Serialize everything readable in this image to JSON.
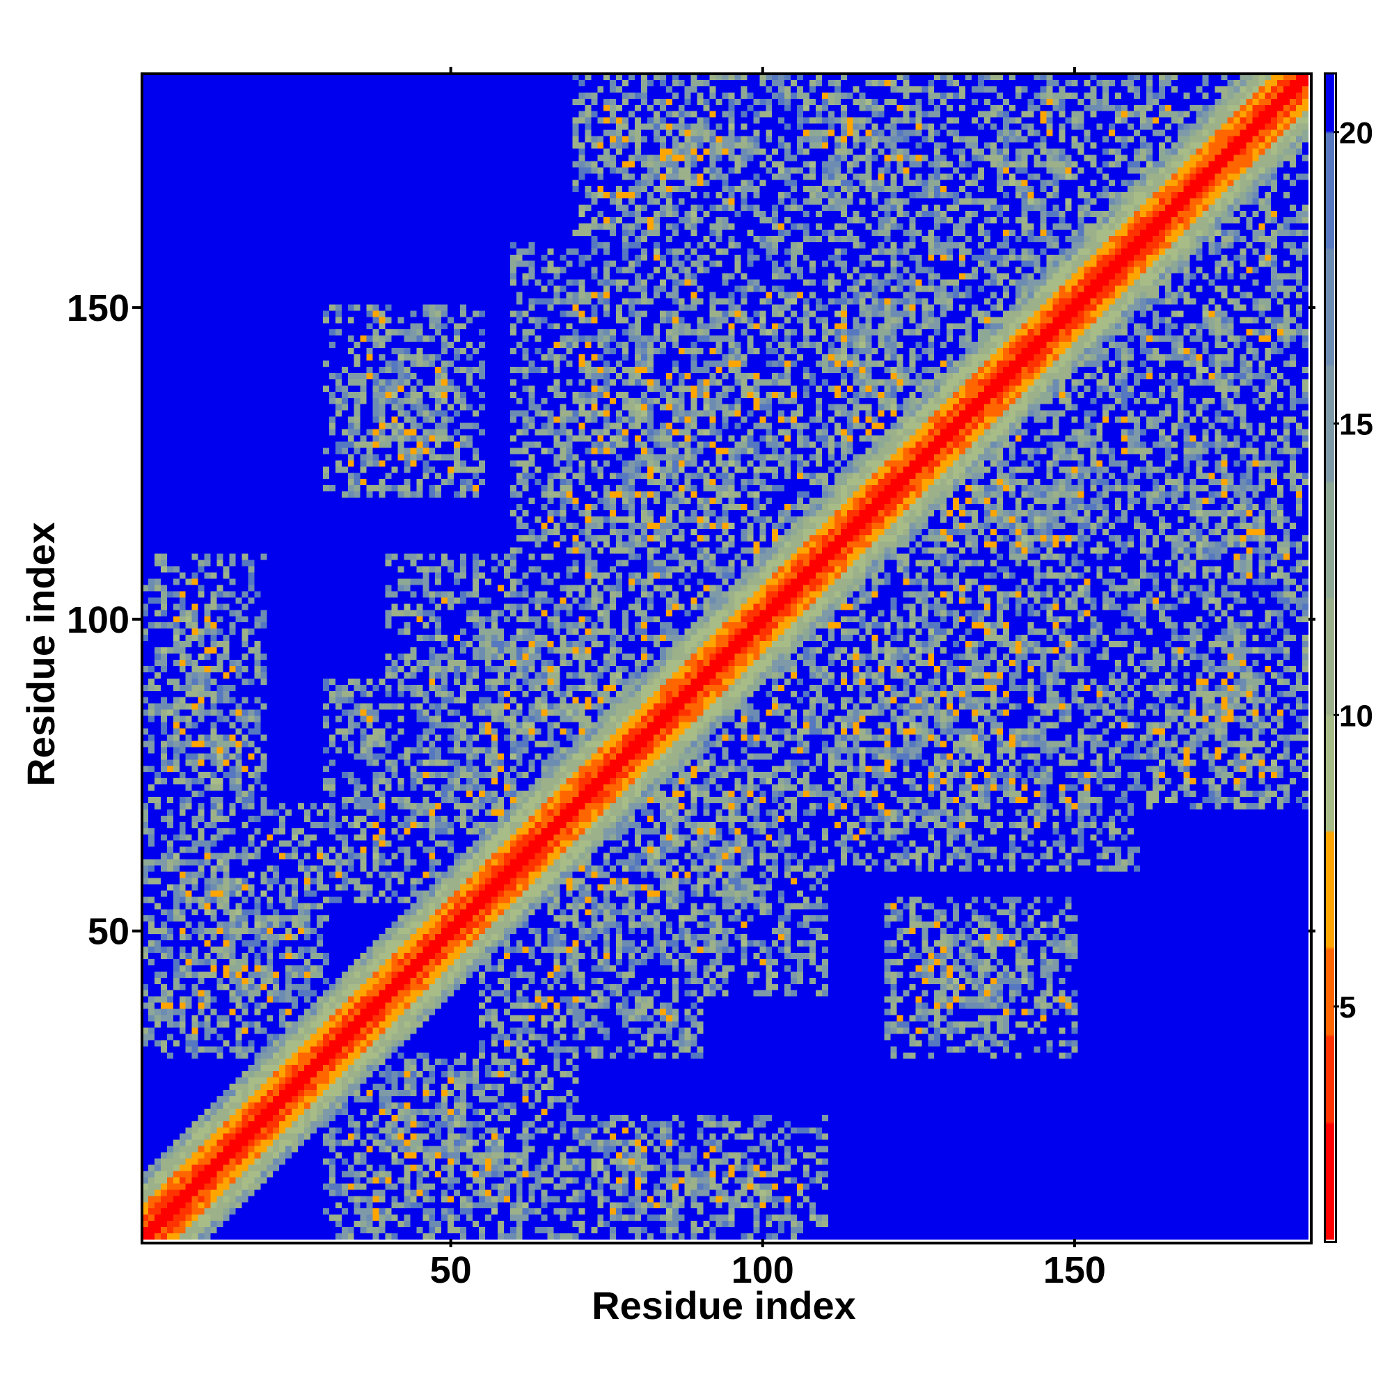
{
  "chart_data": {
    "type": "heatmap",
    "title": "",
    "xlabel": "Residue index",
    "ylabel": "Residue index",
    "n_residues": 187,
    "xlim": [
      1,
      187
    ],
    "ylim": [
      1,
      187
    ],
    "x_ticks": [
      50,
      100,
      150
    ],
    "x_tick_labels": [
      "50",
      "100",
      "150"
    ],
    "y_ticks": [
      50,
      100,
      150
    ],
    "y_tick_labels": [
      "50",
      "100",
      "150"
    ],
    "colorbar": {
      "range": [
        1,
        21
      ],
      "ticks": [
        5,
        10,
        15,
        20
      ],
      "tick_labels": [
        "5",
        "10",
        "15",
        "20"
      ],
      "colors": [
        {
          "from": 1,
          "to": 3,
          "color": "#ff0000"
        },
        {
          "from": 3,
          "to": 4.5,
          "color": "#ff3300"
        },
        {
          "from": 4.5,
          "to": 6,
          "color": "#ff6600"
        },
        {
          "from": 6,
          "to": 8,
          "color": "#ffa500"
        },
        {
          "from": 8,
          "to": 10,
          "color": "#a8bc88"
        },
        {
          "from": 10,
          "to": 12,
          "color": "#9cb08a"
        },
        {
          "from": 12,
          "to": 14,
          "color": "#8ea896"
        },
        {
          "from": 14,
          "to": 16,
          "color": "#7e9aa8"
        },
        {
          "from": 16,
          "to": 18,
          "color": "#6d8cb2"
        },
        {
          "from": 18,
          "to": 20,
          "color": "#5578c0"
        },
        {
          "from": 20,
          "to": 21,
          "color": "#0000ee"
        }
      ]
    },
    "pattern": {
      "description_values": "symmetric residue distance map; diagonal band red/orange, off-diagonal contact patches mixed orange/gray-green, background blue",
      "contact_regions": [
        {
          "i": [
            1,
            30
          ],
          "j": [
            30,
            70
          ]
        },
        {
          "i": [
            40,
            75
          ],
          "j": [
            1,
            20
          ]
        },
        {
          "i": [
            40,
            95
          ],
          "j": [
            60,
            110
          ]
        },
        {
          "i": [
            55,
            90
          ],
          "j": [
            30,
            60
          ]
        },
        {
          "i": [
            60,
            110
          ],
          "j": [
            100,
            160
          ]
        },
        {
          "i": [
            95,
            135
          ],
          "j": [
            120,
            165
          ]
        },
        {
          "i": [
            110,
            140
          ],
          "j": [
            60,
            100
          ]
        },
        {
          "i": [
            120,
            150
          ],
          "j": [
            90,
            130
          ]
        },
        {
          "i": [
            140,
            165
          ],
          "j": [
            110,
            150
          ]
        },
        {
          "i": [
            150,
            187
          ],
          "j": [
            130,
            187
          ]
        },
        {
          "i": [
            165,
            187
          ],
          "j": [
            100,
            135
          ]
        },
        {
          "i": [
            30,
            55
          ],
          "j": [
            120,
            150
          ]
        },
        {
          "i": [
            1,
            20
          ],
          "j": [
            60,
            110
          ]
        },
        {
          "i": [
            70,
            100
          ],
          "j": [
            160,
            187
          ]
        }
      ]
    }
  }
}
